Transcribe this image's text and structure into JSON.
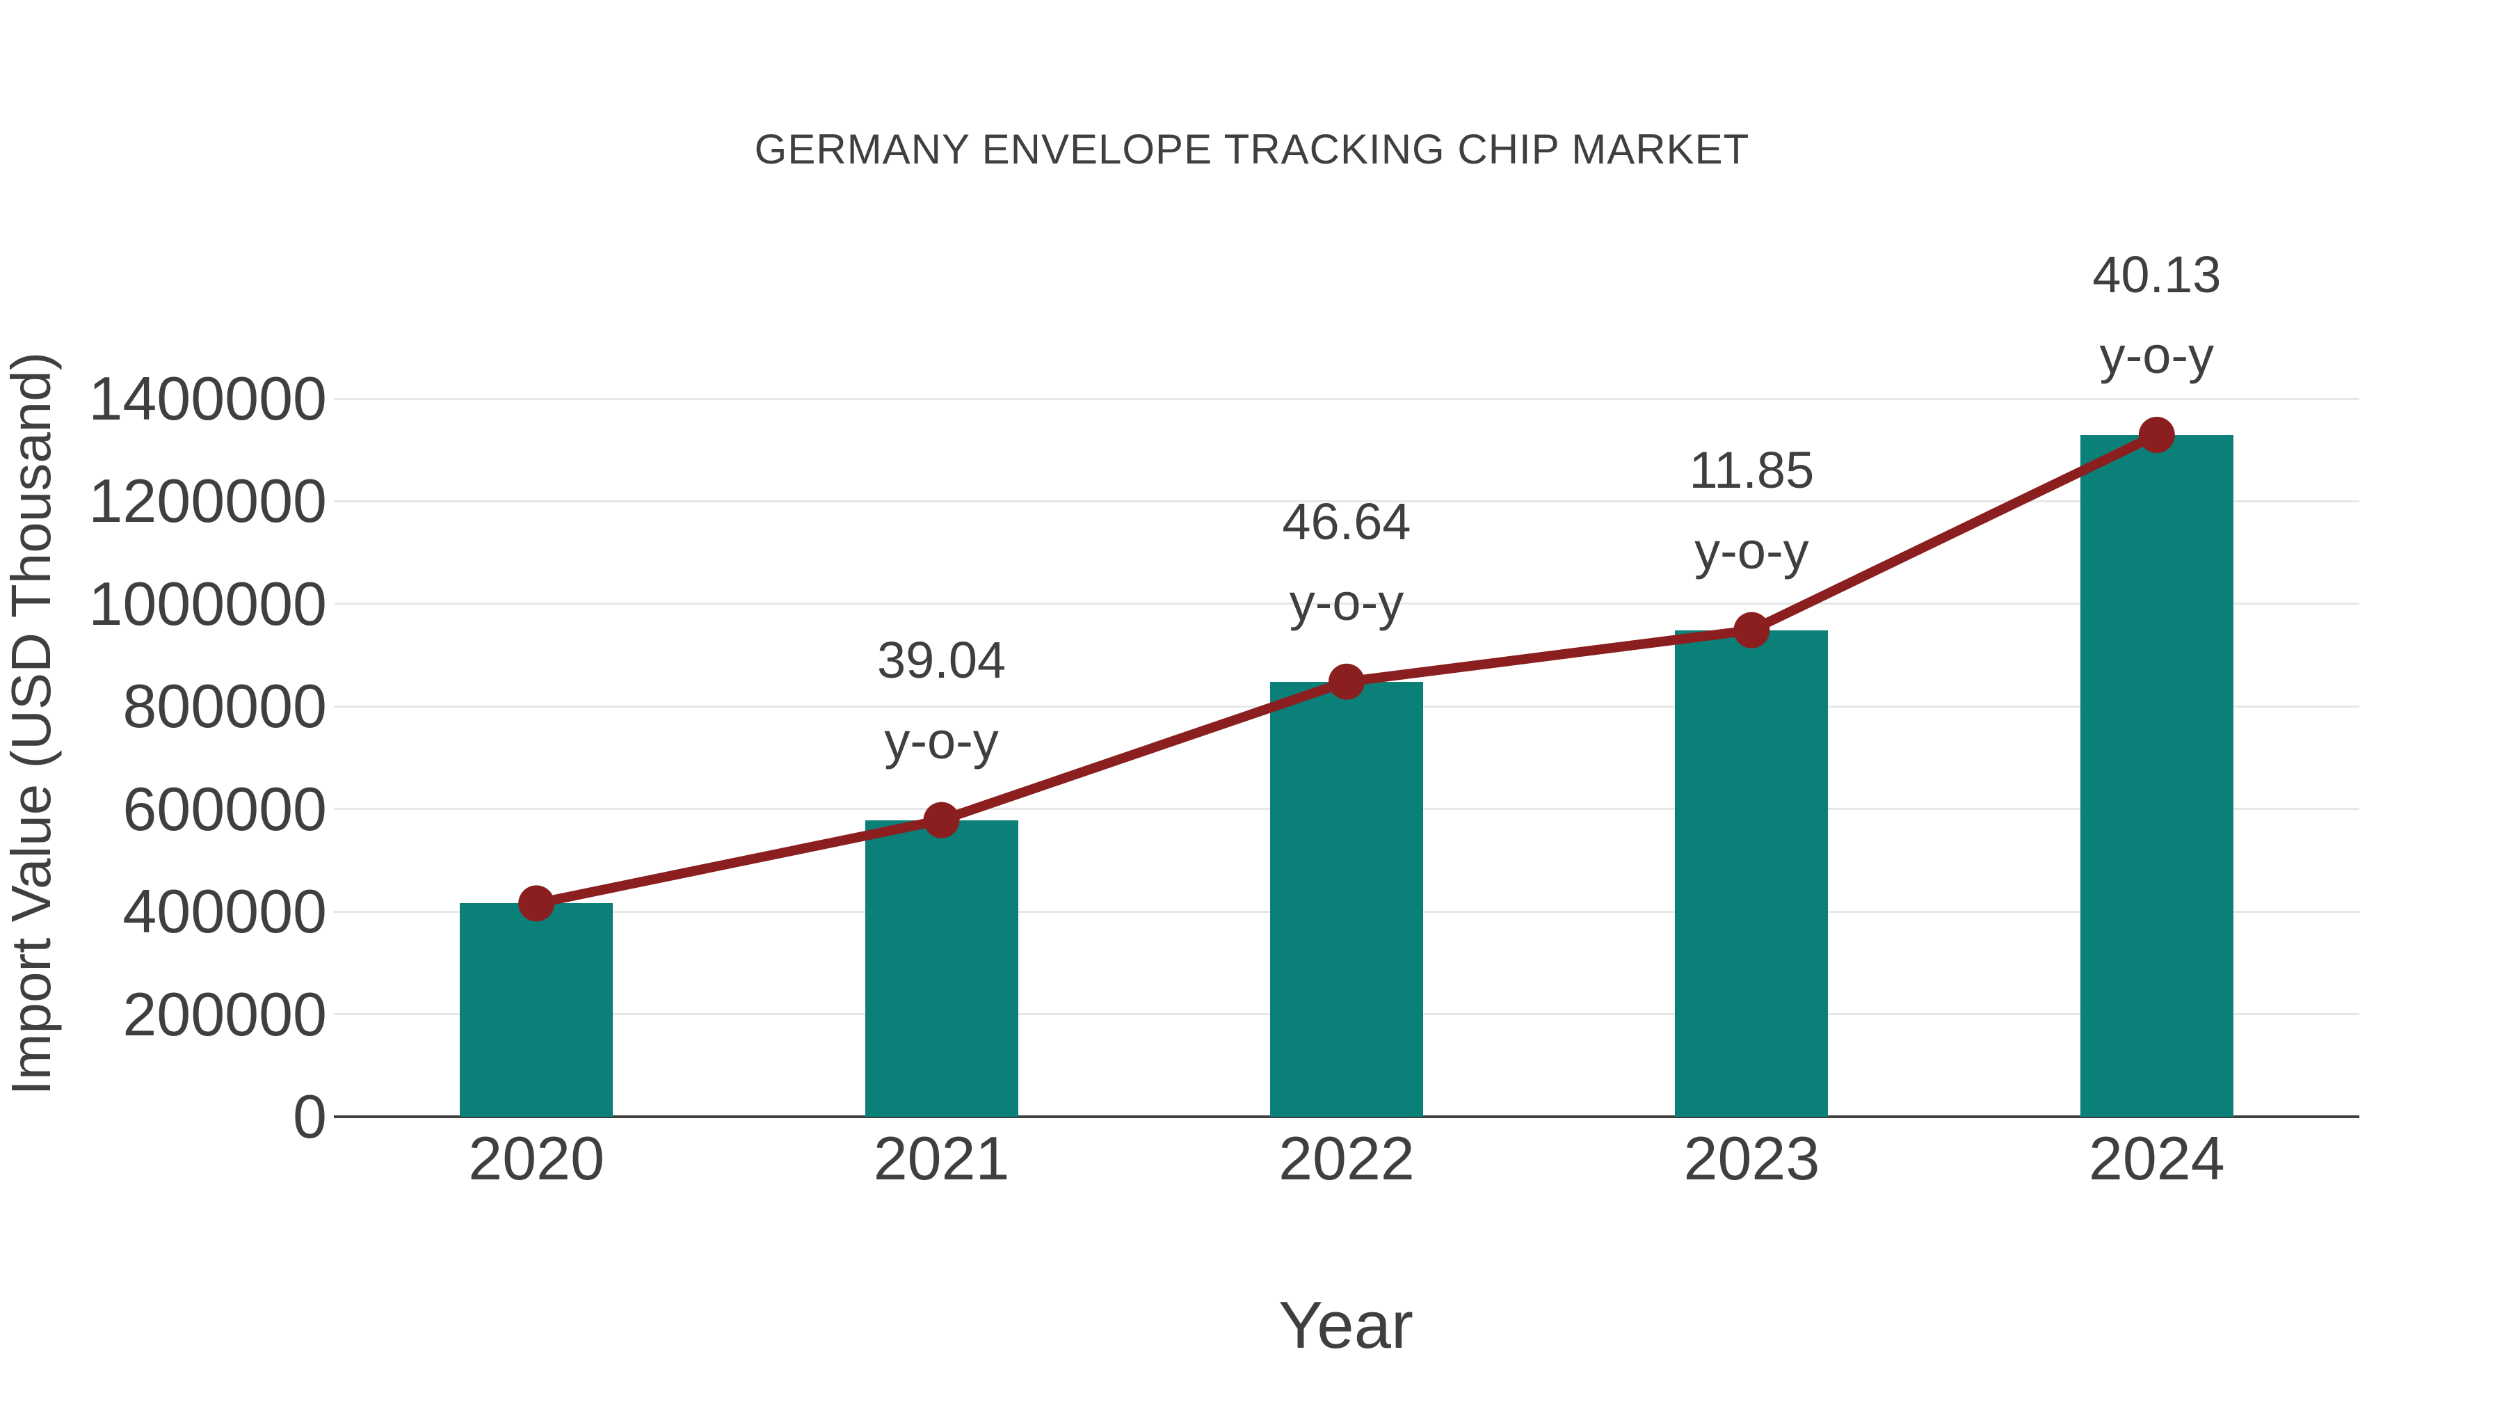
{
  "chart_data": {
    "type": "bar",
    "title": "GERMANY ENVELOPE TRACKING CHIP MARKET",
    "xlabel": "Year",
    "ylabel": "Import Value (USD Thousand)",
    "categories": [
      "2020",
      "2021",
      "2022",
      "2023",
      "2024"
    ],
    "series": [
      {
        "name": "import-value-bars",
        "type": "bar",
        "values": [
          416000,
          578400,
          848200,
          948700,
          1329400
        ]
      },
      {
        "name": "import-value-trend-line",
        "type": "line",
        "values": [
          416000,
          578400,
          848200,
          948700,
          1329400
        ]
      }
    ],
    "annotations": [
      {
        "category": "2021",
        "value": "39.04",
        "suffix": "y-o-y"
      },
      {
        "category": "2022",
        "value": "46.64",
        "suffix": "y-o-y"
      },
      {
        "category": "2023",
        "value": "11.85",
        "suffix": "y-o-y"
      },
      {
        "category": "2024",
        "value": "40.13",
        "suffix": "y-o-y"
      }
    ],
    "ylim": [
      0,
      1400000
    ],
    "yticks": [
      0,
      200000,
      400000,
      600000,
      800000,
      1000000,
      1200000,
      1400000
    ],
    "grid": true,
    "legend": false
  },
  "colors": {
    "bar": "#0a8079",
    "line": "#8b1f1f",
    "marker": "#8b1f1f",
    "text": "#3f3f3f",
    "gridline": "#e7e7e7",
    "axis_line": "#3f3f3f",
    "background": "#ffffff"
  }
}
